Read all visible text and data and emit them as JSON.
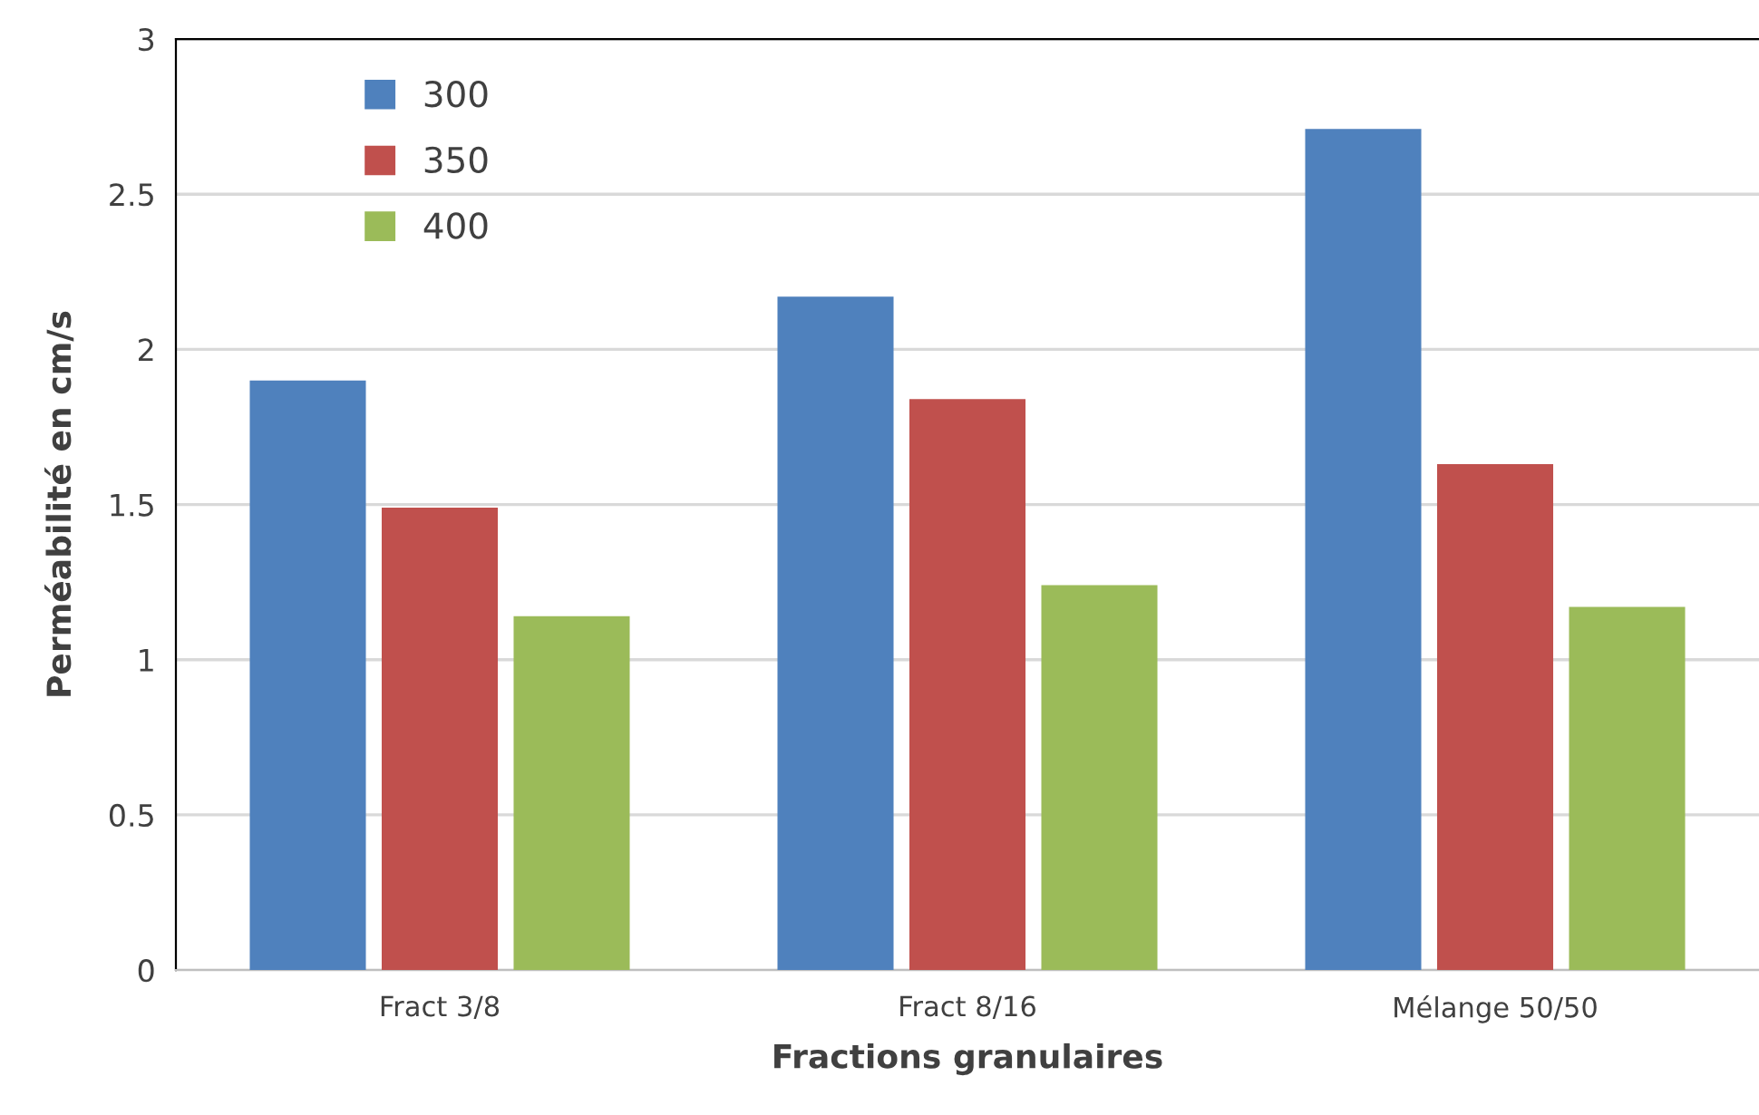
{
  "chart_data": {
    "type": "bar",
    "xlabel": "Fractions granulaires",
    "ylabel": "Perméabilité en cm/s",
    "categories": [
      "Fract 3/8",
      "Fract 8/16",
      "Mélange 50/50"
    ],
    "series": [
      {
        "name": "300",
        "color": "#4f81bd",
        "values": [
          1.9,
          2.17,
          2.71
        ]
      },
      {
        "name": "350",
        "color": "#c0504d",
        "values": [
          1.49,
          1.84,
          1.63
        ]
      },
      {
        "name": "400",
        "color": "#9bbb59",
        "values": [
          1.14,
          1.24,
          1.17
        ]
      }
    ],
    "ylim": [
      0,
      3
    ],
    "yticks": [
      0,
      0.5,
      1,
      1.5,
      2,
      2.5,
      3
    ],
    "grid": "y",
    "legend": "top left"
  }
}
